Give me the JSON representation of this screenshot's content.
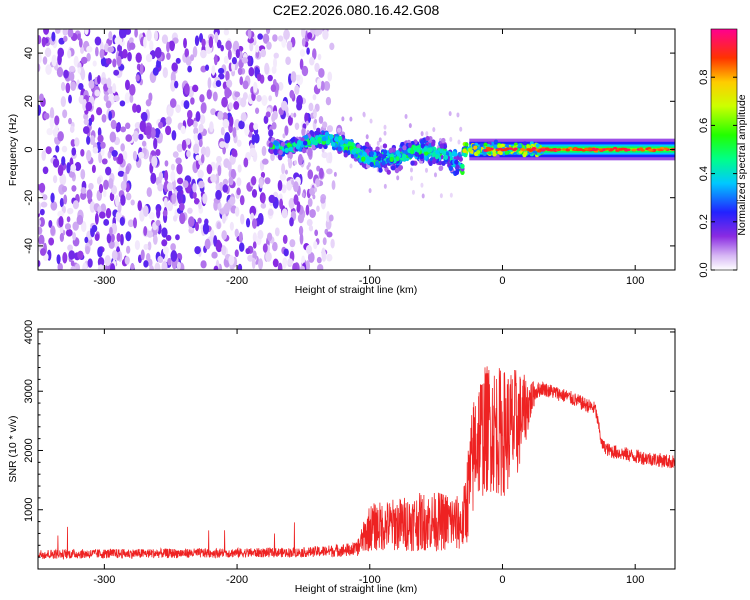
{
  "title": "C2E2.2026.080.16.42.G08",
  "chart_data": [
    {
      "type": "heatmap",
      "name": "spectrogram",
      "xlabel": "Height of straight line (km)",
      "ylabel": "Frequency (Hz)",
      "xlim": [
        -350,
        130
      ],
      "ylim": [
        -50,
        50
      ],
      "xticks": [
        -300,
        -200,
        -100,
        0,
        100
      ],
      "yticks": [
        -40,
        -20,
        0,
        20,
        40
      ],
      "colorbar": {
        "label": "Normalized spectral amplitude",
        "range": [
          0,
          1
        ],
        "ticks": [
          "0.0",
          "0.2",
          "0.4",
          "0.6",
          "0.8"
        ],
        "tick_values": [
          0.0,
          0.2,
          0.4,
          0.6,
          0.8
        ]
      },
      "regions": [
        {
          "x": [
            -350,
            -130
          ],
          "freq": [
            -50,
            50
          ],
          "amplitude": [
            0.0,
            0.2
          ],
          "description": "noise"
        },
        {
          "x": [
            -175,
            -30
          ],
          "freq_center": [
            4,
            -6
          ],
          "freq_width": [
            8,
            14
          ],
          "amplitude": [
            0.1,
            0.55
          ]
        },
        {
          "x": [
            -30,
            130
          ],
          "freq_center": [
            0,
            0
          ],
          "freq_width": [
            8,
            6
          ],
          "amplitude": [
            0.3,
            1.0
          ]
        }
      ]
    },
    {
      "type": "line",
      "name": "snr",
      "xlabel": "Height of straight line (km)",
      "ylabel": "SNR (10 * v/v)",
      "xlim": [
        -350,
        130
      ],
      "ylim": [
        0,
        4050
      ],
      "xticks": [
        -300,
        -200,
        -100,
        0,
        100
      ],
      "yticks": [
        1000,
        2000,
        3000,
        4000
      ],
      "color": "#ee2222",
      "envelope": {
        "x": [
          -350,
          -150,
          -110,
          -100,
          -60,
          -40,
          -30,
          -25,
          -20,
          -10,
          0,
          10,
          15,
          25,
          30,
          50,
          70,
          75,
          80,
          100,
          130
        ],
        "mean": [
          250,
          280,
          330,
          700,
          800,
          800,
          750,
          1400,
          2200,
          2400,
          2300,
          2400,
          2600,
          3000,
          3050,
          2900,
          2700,
          2100,
          2000,
          1900,
          1800
        ],
        "spread": [
          80,
          80,
          120,
          400,
          500,
          500,
          450,
          900,
          1100,
          1100,
          1100,
          1000,
          700,
          150,
          120,
          120,
          120,
          100,
          120,
          120,
          120
        ]
      }
    }
  ]
}
